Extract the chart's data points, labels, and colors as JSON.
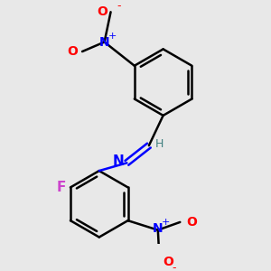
{
  "bg_color": "#e8e8e8",
  "bond_color": "#000000",
  "bond_width": 1.8,
  "N_color": "#0000ff",
  "O_color": "#ff0000",
  "F_color": "#cc44cc",
  "H_color": "#408080",
  "font_size": 11,
  "font_size_small": 8,
  "dpi": 100,
  "fig_w": 3.0,
  "fig_h": 3.0,
  "xlim": [
    0,
    300
  ],
  "ylim": [
    0,
    300
  ]
}
